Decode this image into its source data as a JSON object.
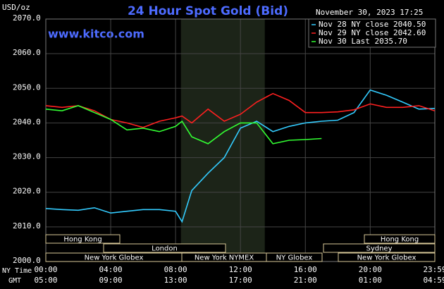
{
  "chart_data": {
    "type": "line",
    "title": "24 Hour Spot Gold (Bid)",
    "subtitle": "www.kitco.com",
    "timestamp": "November 30, 2023 17:25",
    "ylabel": "USD/oz",
    "xlabel": "NY Time",
    "x2label": "GMT",
    "x": [
      0,
      1,
      2,
      3,
      4,
      5,
      6,
      7,
      8,
      8.4,
      9,
      10,
      11,
      12,
      13,
      14,
      15,
      16,
      17,
      18,
      19,
      20,
      21,
      22,
      23,
      23.98
    ],
    "series": [
      {
        "name": "Nov 28 NY close 2040.50",
        "color": "#33ccff",
        "values": [
          2015.3,
          2015,
          2014.8,
          2015.5,
          2014,
          2014.5,
          2015,
          2015,
          2014.5,
          2011.5,
          2020.5,
          2025.5,
          2030,
          2038.5,
          2040.5,
          2037.5,
          2039,
          2040,
          2040.5,
          2040.8,
          2043,
          2049.5,
          2048,
          2046,
          2044,
          2044.2
        ]
      },
      {
        "name": "Nov 29 NY close 2042.60",
        "color": "#ff2020",
        "values": [
          2045,
          2044.5,
          2045,
          2043.5,
          2041,
          2040,
          2038.7,
          2040.5,
          2041.5,
          2042,
          2040,
          2044,
          2040.5,
          2042.5,
          2046,
          2048.5,
          2046.5,
          2043,
          2043,
          2043.2,
          2043.8,
          2045.5,
          2044.5,
          2044.5,
          2045,
          2043.5
        ]
      },
      {
        "name": "Nov 30 Last 2035.70",
        "color": "#33ff33",
        "values": [
          2044,
          2043.5,
          2045,
          2043,
          2041,
          2038,
          2038.5,
          2037.5,
          2039,
          2040.5,
          2036,
          2034,
          2037.5,
          2040,
          2040,
          2034,
          2035,
          2035.2,
          2035.5,
          null,
          null,
          null,
          null,
          null,
          null,
          null
        ]
      }
    ],
    "xlim": [
      0,
      23.983
    ],
    "xticks": [
      {
        "value": 0,
        "label": "00:00"
      },
      {
        "value": 4,
        "label": "04:00"
      },
      {
        "value": 8,
        "label": "08:00"
      },
      {
        "value": 12,
        "label": "12:00"
      },
      {
        "value": 16,
        "label": "16:00"
      },
      {
        "value": 20,
        "label": "20:00"
      },
      {
        "value": 23.983,
        "label": "23:59"
      }
    ],
    "gmt_labels": [
      "05:00",
      "09:00",
      "13:00",
      "17:00",
      "21:00",
      "01:00",
      "04:59"
    ],
    "ylim": [
      2000,
      2070
    ],
    "yticks": [
      {
        "value": 2000,
        "label": "2000.0"
      },
      {
        "value": 2010,
        "label": "2010.0"
      },
      {
        "value": 2020,
        "label": "2020.0"
      },
      {
        "value": 2030,
        "label": "2030.0"
      },
      {
        "value": 2040,
        "label": "2040.0"
      },
      {
        "value": 2050,
        "label": "2050.0"
      },
      {
        "value": 2060,
        "label": "2060.0"
      },
      {
        "value": 2070,
        "label": "2070.0"
      }
    ],
    "grid": true,
    "sessions": [
      "Hong Kong",
      "London",
      "New York Globex",
      "New York NYMEX",
      "NY Globex",
      "Sydney",
      "Hong Kong",
      "New York Globex"
    ]
  }
}
